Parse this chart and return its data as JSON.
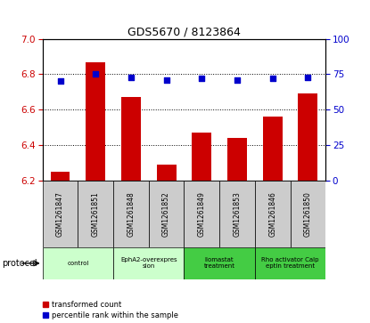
{
  "title": "GDS5670 / 8123864",
  "samples": [
    "GSM1261847",
    "GSM1261851",
    "GSM1261848",
    "GSM1261852",
    "GSM1261849",
    "GSM1261853",
    "GSM1261846",
    "GSM1261850"
  ],
  "bar_values": [
    6.25,
    6.87,
    6.67,
    6.29,
    6.47,
    6.44,
    6.56,
    6.69
  ],
  "percentile_values": [
    70,
    75,
    73,
    71,
    72,
    71,
    72,
    73
  ],
  "ylim_left": [
    6.2,
    7.0
  ],
  "ylim_right": [
    0,
    100
  ],
  "yticks_left": [
    6.2,
    6.4,
    6.6,
    6.8,
    7.0
  ],
  "yticks_right": [
    0,
    25,
    50,
    75,
    100
  ],
  "bar_color": "#cc0000",
  "dot_color": "#0000cc",
  "bar_width": 0.55,
  "protocols": [
    {
      "label": "control",
      "span": [
        0,
        2
      ],
      "color": "#ccffcc"
    },
    {
      "label": "EphA2-overexpres\nsion",
      "span": [
        2,
        4
      ],
      "color": "#ccffcc"
    },
    {
      "label": "Ilomastat\ntreatment",
      "span": [
        4,
        6
      ],
      "color": "#44cc44"
    },
    {
      "label": "Rho activator Calp\neptin treatment",
      "span": [
        6,
        8
      ],
      "color": "#44cc44"
    }
  ],
  "legend_items": [
    {
      "label": "transformed count",
      "color": "#cc0000",
      "marker": "s"
    },
    {
      "label": "percentile rank within the sample",
      "color": "#0000cc",
      "marker": "s"
    }
  ],
  "protocol_label": "protocol",
  "bg_color": "#ffffff",
  "grid_color": "#000000",
  "tick_label_color_left": "#cc0000",
  "tick_label_color_right": "#0000cc",
  "sample_box_color": "#cccccc",
  "title_fontsize": 9
}
